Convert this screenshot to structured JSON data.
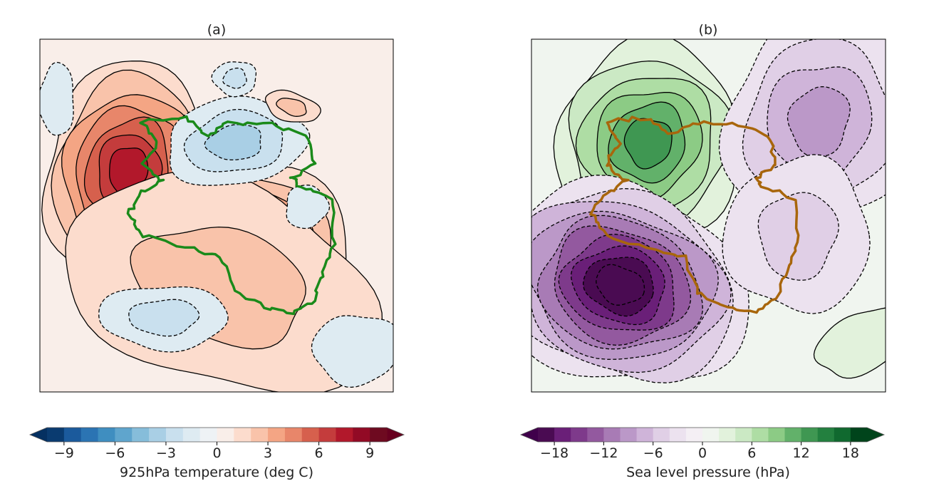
{
  "chart_data": [
    {
      "type": "heatmap",
      "title": "(a)",
      "colorbar": {
        "label": "925hPa temperature (deg C)",
        "range": [
          -10,
          10
        ],
        "step": 1,
        "extend": "both",
        "ticks": [
          -9,
          -6,
          -3,
          0,
          3,
          6,
          9
        ],
        "tick_labels": [
          "−9",
          "−6",
          "−3",
          "0",
          "3",
          "6",
          "9"
        ],
        "colors": [
          "#0a3b70",
          "#1b5a9c",
          "#2b74b3",
          "#3f8ec0",
          "#5fa5cd",
          "#86bdda",
          "#a9cfe5",
          "#c9e0ee",
          "#deebf2",
          "#eef2f5",
          "#f9eee9",
          "#fcdccd",
          "#f9c3aa",
          "#f4a584",
          "#e8866a",
          "#d6604d",
          "#c43c3c",
          "#b2182b",
          "#920a25",
          "#6e0a20"
        ],
        "under_color": "#053061",
        "over_color": "#67001f"
      },
      "contours": {
        "negative_style": "dashed",
        "positive_style": "solid",
        "color": "#000000"
      },
      "coastline_color": "#1a8a1a"
    },
    {
      "type": "heatmap",
      "title": "(b)",
      "colorbar": {
        "label": "Sea level pressure (hPa)",
        "range": [
          -20,
          20
        ],
        "step": 2,
        "extend": "both",
        "ticks": [
          -18,
          -12,
          -6,
          0,
          6,
          12,
          18
        ],
        "tick_labels": [
          "−18",
          "−12",
          "−6",
          "0",
          "6",
          "12",
          "18"
        ],
        "colors": [
          "#4a0b52",
          "#6a1f78",
          "#7e3a8b",
          "#93599f",
          "#a87bb5",
          "#bb98c8",
          "#cfb4d9",
          "#e0cfe6",
          "#ece2ef",
          "#f4eff4",
          "#f0f5ef",
          "#e2f2dc",
          "#cbe9c4",
          "#aedda4",
          "#8ccb85",
          "#62b16a",
          "#3f9752",
          "#23803f",
          "#10692f",
          "#00441b"
        ],
        "under_color": "#40004b",
        "over_color": "#00441b"
      },
      "contours": {
        "negative_style": "dashed",
        "positive_style": "solid",
        "color": "#000000"
      },
      "coastline_color": "#a8660c"
    }
  ]
}
